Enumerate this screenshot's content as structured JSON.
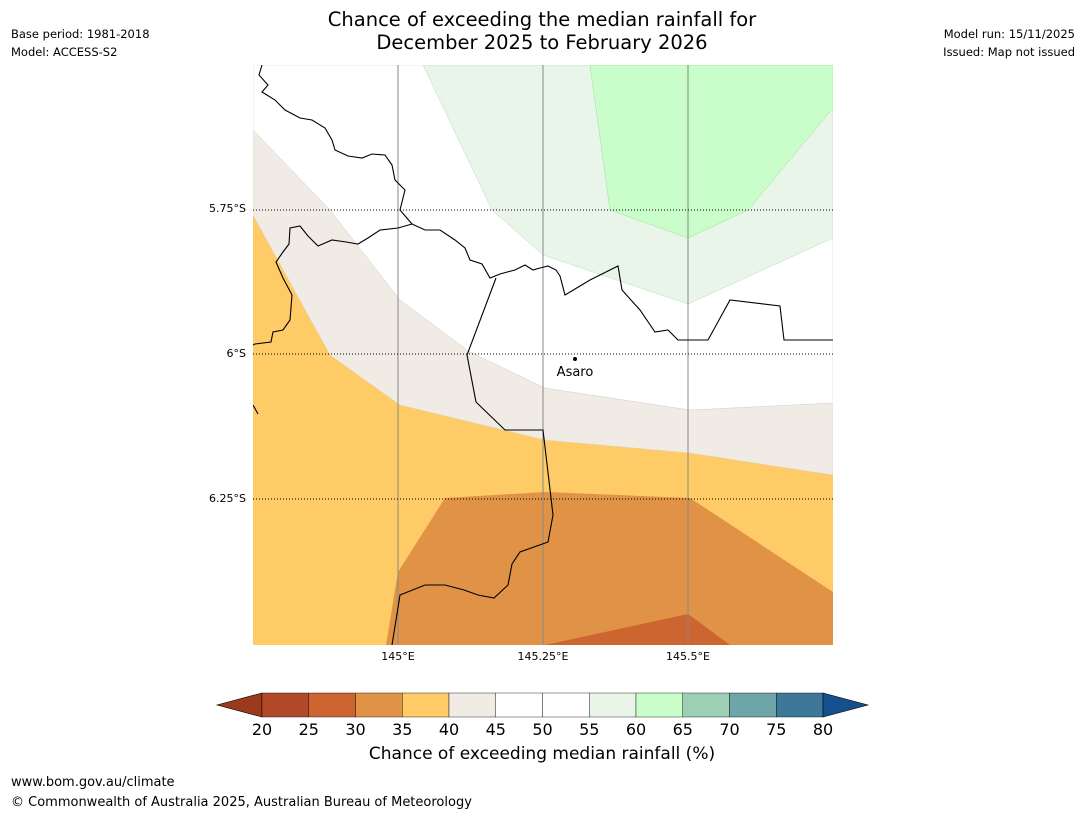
{
  "title": {
    "line1": "Chance of exceeding the median rainfall for",
    "line2": "December 2025 to February 2026"
  },
  "meta_left": {
    "base_period": "Base period: 1981-2018",
    "model": "Model: ACCESS-S2"
  },
  "meta_right": {
    "model_run": "Model run: 15/11/2025",
    "issued": "Issued: Map not issued"
  },
  "map": {
    "lat_labels": [
      "5.75°S",
      "6°S",
      "6.25°S"
    ],
    "lon_labels": [
      "145°E",
      "145.25°E",
      "145.5°E"
    ],
    "town": "Asaro"
  },
  "colorbar": {
    "ticks": [
      "20",
      "25",
      "30",
      "35",
      "40",
      "45",
      "50",
      "55",
      "60",
      "65",
      "70",
      "75",
      "80"
    ],
    "colors": [
      "#9c3a1e",
      "#b1492a",
      "#cc6530",
      "#e09346",
      "#fecb66",
      "#f0ebe4",
      "#ffffff",
      "#ffffff",
      "#e9f5e8",
      "#c9fdc9",
      "#9ccfb4",
      "#6ea5a8",
      "#3d7899",
      "#16508c"
    ],
    "title": "Chance of exceeding median rainfall (%)"
  },
  "footer": {
    "url": "www.bom.gov.au/climate",
    "copyright": "© Commonwealth of Australia 2025, Australian Bureau of Meteorology"
  }
}
